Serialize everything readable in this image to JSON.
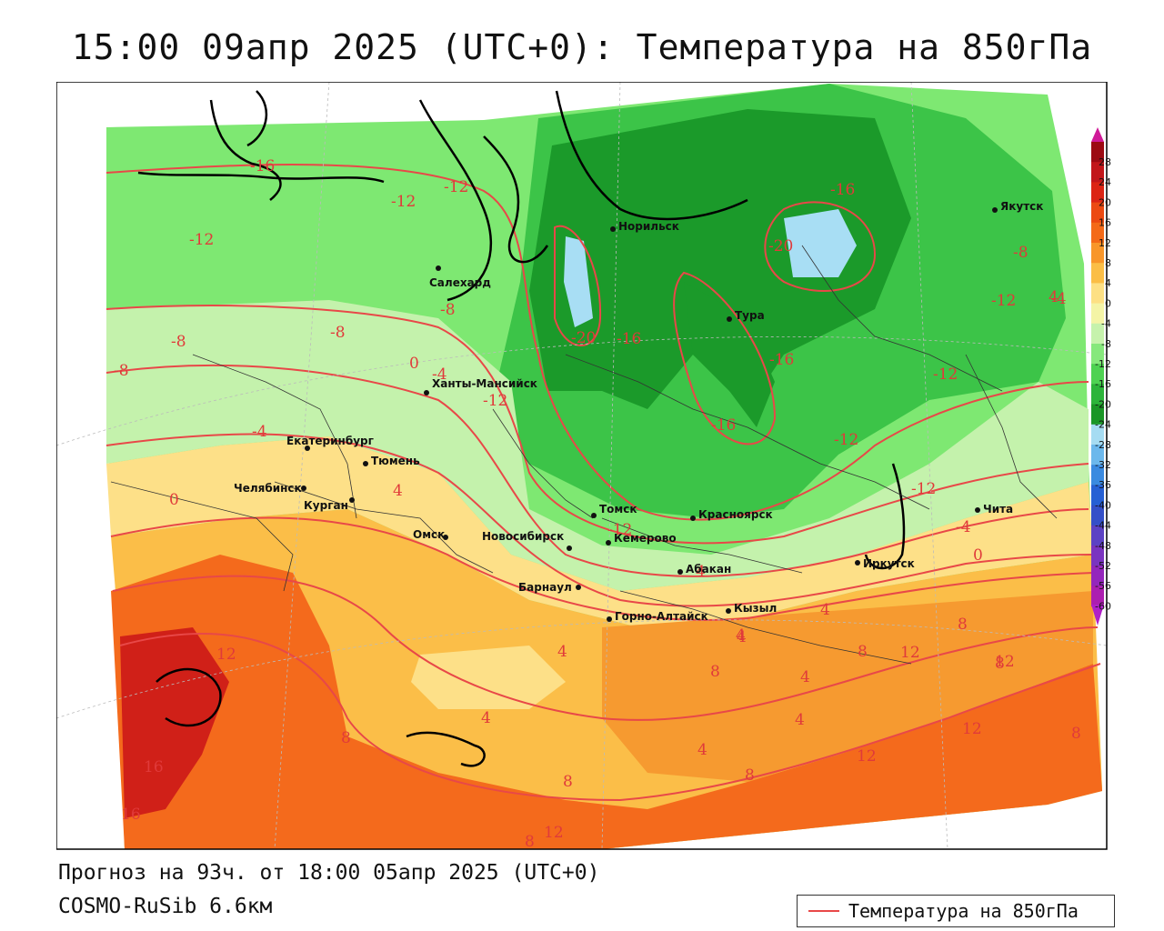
{
  "title": "15:00 09апр 2025 (UTC+0): Температура на 850гПа",
  "forecast_text": "Прогноз на 93ч. от 18:00 05апр 2025 (UTC+0)",
  "model_text": "COSMO-RuSib 6.6км",
  "legend": {
    "label": "Температура на 850гПа",
    "line_color": "#e84848"
  },
  "colorbar": {
    "labels": [
      "28",
      "24",
      "20",
      "16",
      "12",
      "8",
      "4",
      "0",
      "-4",
      "-8",
      "-12",
      "-16",
      "-20",
      "-24",
      "-28",
      "-32",
      "-36",
      "-40",
      "-44",
      "-48",
      "-52",
      "-56",
      "-60"
    ],
    "colors": [
      "#9c0a12",
      "#c2161a",
      "#dc2414",
      "#ec4a12",
      "#f46a18",
      "#f8962a",
      "#fbbe46",
      "#fde084",
      "#f4f4a6",
      "#c6f2ac",
      "#86e87c",
      "#4ed252",
      "#2cb43a",
      "#1a9626",
      "#a6dcf2",
      "#6cb8ec",
      "#3a8ae0",
      "#2660d4",
      "#3450c8",
      "#5c42c4",
      "#7a34c0",
      "#9426bc",
      "#ac1eb0"
    ]
  },
  "cities": [
    {
      "name": "Норильск"
    },
    {
      "name": "Якутск"
    },
    {
      "name": "Салехард"
    },
    {
      "name": "Тура"
    },
    {
      "name": "Ханты-Мансийск"
    },
    {
      "name": "Екатеринбург"
    },
    {
      "name": "Тюмень"
    },
    {
      "name": "Челябинск"
    },
    {
      "name": "Курган"
    },
    {
      "name": "Омск"
    },
    {
      "name": "Томск"
    },
    {
      "name": "Красноярск"
    },
    {
      "name": "Кемерово"
    },
    {
      "name": "Новосибирск"
    },
    {
      "name": "Барнаул"
    },
    {
      "name": "Абакан"
    },
    {
      "name": "Кызыл"
    },
    {
      "name": "Горно-Алтайск"
    },
    {
      "name": "Иркутск"
    },
    {
      "name": "Чита"
    }
  ],
  "isotherm_labels": [
    "-16",
    "-12",
    "-12",
    "-16",
    "-20",
    "-12",
    "-8",
    "-8",
    "-12",
    "-8",
    "-4",
    "-20",
    "-16",
    "-4",
    "-12",
    "-16",
    "-12",
    "0",
    "-16",
    "-12",
    "-12",
    "-4",
    "-8",
    "0",
    "4",
    "-12",
    "-8",
    "-4",
    "0",
    "4",
    "4",
    "8",
    "12",
    "12",
    "8",
    "4",
    "8",
    "4",
    "8",
    "12",
    "4",
    "16",
    "16",
    "8",
    "8",
    "8",
    "12",
    "12",
    "12",
    "8",
    "4",
    "4",
    "4",
    "4",
    "4",
    "8"
  ]
}
